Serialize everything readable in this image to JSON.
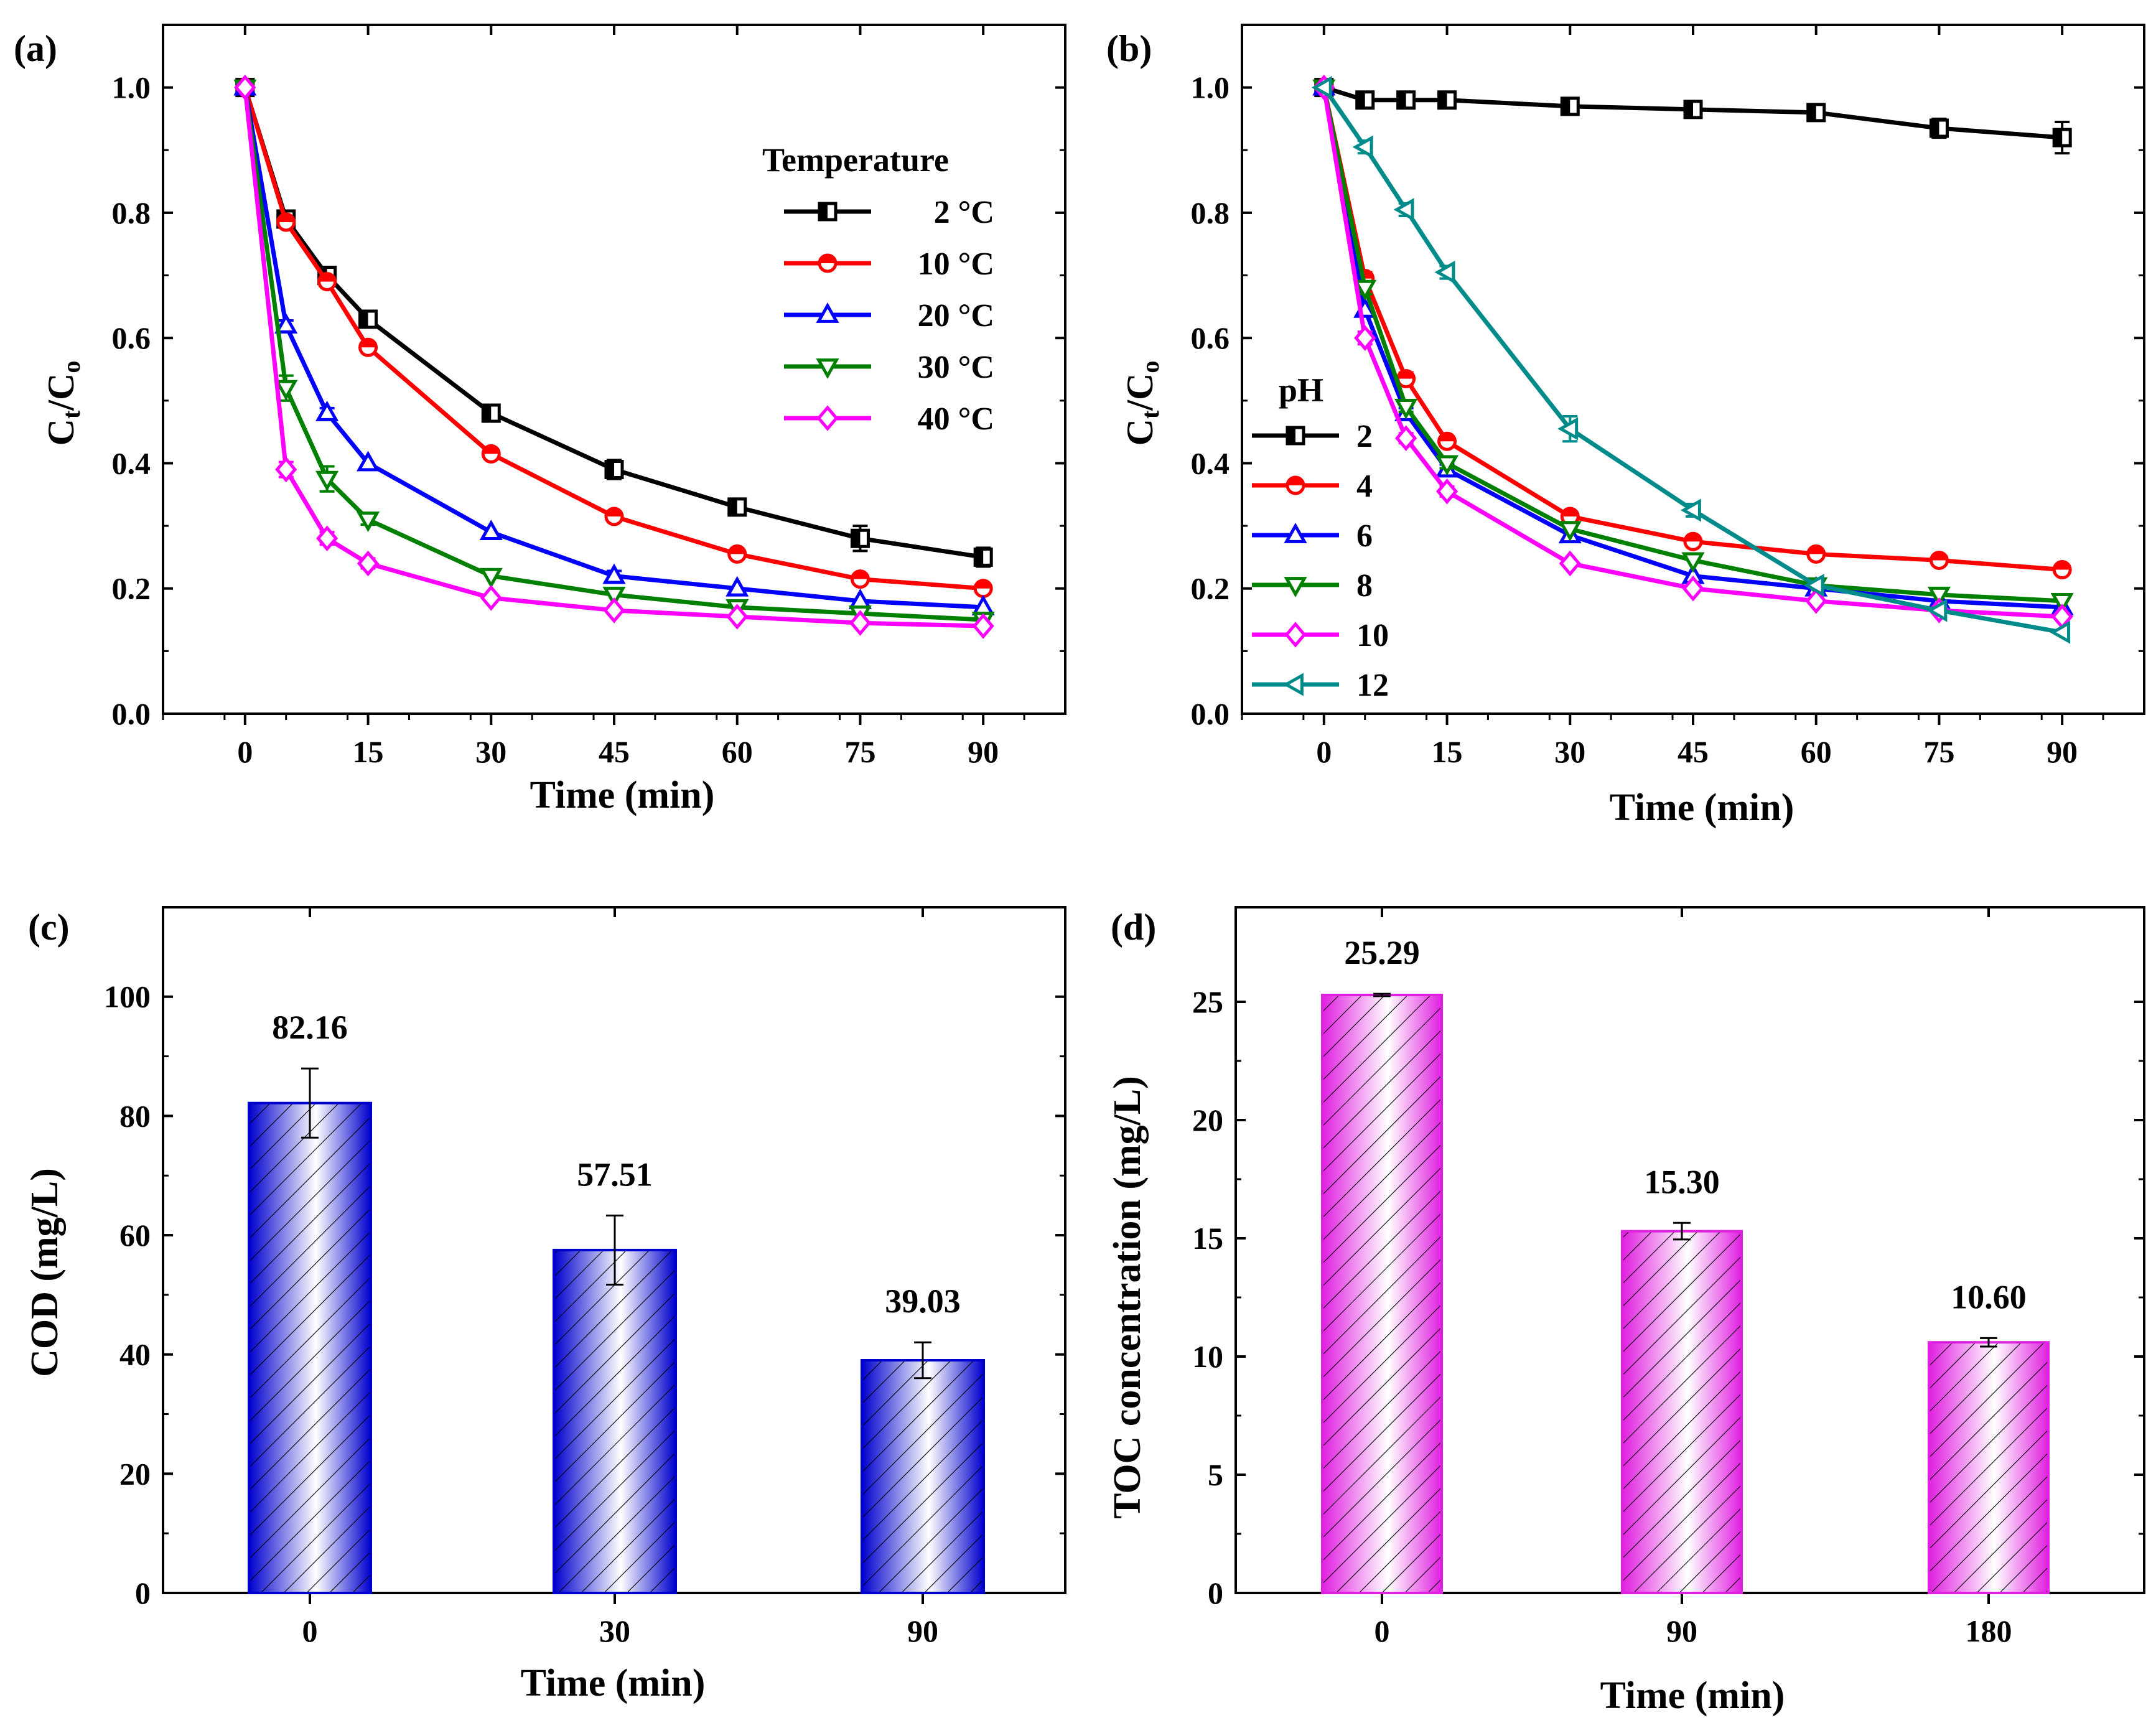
{
  "chart_data": [
    {
      "id": "a",
      "type": "line",
      "panel_label": "(a)",
      "xlabel": "Time (min)",
      "ylabel_main": "C",
      "ylabel_sub1": "t",
      "ylabel_mid": "/C",
      "ylabel_sub2": "o",
      "xlim": [
        -10,
        100
      ],
      "ylim": [
        0.0,
        1.1
      ],
      "xticks": [
        0,
        15,
        30,
        45,
        60,
        75,
        90
      ],
      "yticks": [
        0.0,
        0.2,
        0.4,
        0.6,
        0.8,
        1.0
      ],
      "x": [
        0,
        5,
        10,
        15,
        30,
        45,
        60,
        75,
        90
      ],
      "legend_title": "Temperature",
      "legend_position": "top-right",
      "series": [
        {
          "name": "2 °C",
          "color": "#000000",
          "marker": "square",
          "values": [
            1.0,
            0.79,
            0.7,
            0.63,
            0.48,
            0.39,
            0.33,
            0.28,
            0.25
          ],
          "errors": [
            0.005,
            0.005,
            0.01,
            0.01,
            0.01,
            0.015,
            0.01,
            0.02,
            0.015
          ]
        },
        {
          "name": "10 °C",
          "color": "#ff0000",
          "marker": "circle",
          "values": [
            1.0,
            0.785,
            0.69,
            0.585,
            0.415,
            0.315,
            0.255,
            0.215,
            0.2
          ],
          "errors": [
            0.005,
            0.005,
            0.008,
            0.008,
            0.008,
            0.008,
            0.006,
            0.006,
            0.006
          ]
        },
        {
          "name": "20 °C",
          "color": "#0000ff",
          "marker": "triangle-up",
          "values": [
            1.0,
            0.62,
            0.48,
            0.4,
            0.29,
            0.22,
            0.2,
            0.18,
            0.17
          ],
          "errors": [
            0.005,
            0.008,
            0.008,
            0.006,
            0.006,
            0.008,
            0.006,
            0.006,
            0.006
          ]
        },
        {
          "name": "30 °C",
          "color": "#008000",
          "marker": "triangle-down",
          "values": [
            1.0,
            0.52,
            0.375,
            0.31,
            0.22,
            0.19,
            0.17,
            0.16,
            0.15
          ],
          "errors": [
            0.005,
            0.02,
            0.02,
            0.008,
            0.006,
            0.006,
            0.006,
            0.006,
            0.006
          ]
        },
        {
          "name": "40 °C",
          "color": "#ff00ff",
          "marker": "diamond",
          "values": [
            1.0,
            0.39,
            0.28,
            0.24,
            0.185,
            0.165,
            0.155,
            0.145,
            0.14
          ],
          "errors": [
            0.005,
            0.012,
            0.01,
            0.008,
            0.006,
            0.006,
            0.006,
            0.006,
            0.006
          ]
        }
      ]
    },
    {
      "id": "b",
      "type": "line",
      "panel_label": "(b)",
      "xlabel": "Time (min)",
      "ylabel_main": "C",
      "ylabel_sub1": "t",
      "ylabel_mid": "/C",
      "ylabel_sub2": "o",
      "xlim": [
        -10,
        100
      ],
      "ylim": [
        0.0,
        1.1
      ],
      "xticks": [
        0,
        15,
        30,
        45,
        60,
        75,
        90
      ],
      "yticks": [
        0.0,
        0.2,
        0.4,
        0.6,
        0.8,
        1.0
      ],
      "x": [
        0,
        5,
        10,
        15,
        30,
        45,
        60,
        75,
        90
      ],
      "legend_title": "pH",
      "legend_position": "bottom-left",
      "series": [
        {
          "name": "2",
          "color": "#000000",
          "marker": "square",
          "values": [
            1.0,
            0.98,
            0.98,
            0.98,
            0.97,
            0.965,
            0.96,
            0.935,
            0.92
          ],
          "errors": [
            0.005,
            0.01,
            0.01,
            0.01,
            0.01,
            0.01,
            0.01,
            0.015,
            0.025
          ]
        },
        {
          "name": "4",
          "color": "#ff0000",
          "marker": "circle",
          "values": [
            1.0,
            0.695,
            0.535,
            0.435,
            0.315,
            0.275,
            0.255,
            0.245,
            0.23
          ],
          "errors": [
            0.005,
            0.01,
            0.01,
            0.008,
            0.008,
            0.008,
            0.008,
            0.008,
            0.008
          ]
        },
        {
          "name": "6",
          "color": "#0000ff",
          "marker": "triangle-up",
          "values": [
            1.0,
            0.645,
            0.48,
            0.39,
            0.285,
            0.22,
            0.2,
            0.18,
            0.17
          ],
          "errors": [
            0.005,
            0.01,
            0.008,
            0.008,
            0.006,
            0.006,
            0.006,
            0.006,
            0.006
          ]
        },
        {
          "name": "8",
          "color": "#008000",
          "marker": "triangle-down",
          "values": [
            1.0,
            0.68,
            0.49,
            0.4,
            0.295,
            0.245,
            0.205,
            0.19,
            0.18
          ],
          "errors": [
            0.005,
            0.01,
            0.008,
            0.008,
            0.006,
            0.006,
            0.006,
            0.006,
            0.006
          ]
        },
        {
          "name": "10",
          "color": "#ff00ff",
          "marker": "diamond",
          "values": [
            1.0,
            0.6,
            0.44,
            0.355,
            0.24,
            0.2,
            0.18,
            0.165,
            0.155
          ],
          "errors": [
            0.005,
            0.01,
            0.008,
            0.008,
            0.006,
            0.006,
            0.006,
            0.006,
            0.006
          ]
        },
        {
          "name": "12",
          "color": "#008b8b",
          "marker": "triangle-left",
          "values": [
            1.0,
            0.905,
            0.805,
            0.705,
            0.455,
            0.325,
            0.205,
            0.165,
            0.13
          ],
          "errors": [
            0.005,
            0.01,
            0.01,
            0.01,
            0.02,
            0.01,
            0.006,
            0.006,
            0.006
          ]
        }
      ]
    },
    {
      "id": "c",
      "type": "bar",
      "panel_label": "(c)",
      "xlabel": "Time (min)",
      "ylabel": "COD (mg/L)",
      "categories": [
        "0",
        "30",
        "90"
      ],
      "values": [
        82.16,
        57.51,
        39.03
      ],
      "errors": [
        5.8,
        5.8,
        3.0
      ],
      "value_labels": [
        "82.16",
        "57.51",
        "39.03"
      ],
      "ylim": [
        0,
        115
      ],
      "yticks": [
        0,
        20,
        40,
        60,
        80,
        100
      ],
      "bar_color": "#0000cd",
      "hatch": "diagonal"
    },
    {
      "id": "d",
      "type": "bar",
      "panel_label": "(d)",
      "xlabel": "Time (min)",
      "ylabel": "TOC concentration (mg/L)",
      "categories": [
        "0",
        "90",
        "180"
      ],
      "values": [
        25.29,
        15.3,
        10.6
      ],
      "errors": [
        0.05,
        0.35,
        0.18
      ],
      "value_labels": [
        "25.29",
        "15.30",
        "10.60"
      ],
      "ylim": [
        0,
        29
      ],
      "yticks": [
        0,
        5,
        10,
        15,
        20,
        25
      ],
      "bar_color": "#e020e0",
      "hatch": "diagonal"
    }
  ]
}
